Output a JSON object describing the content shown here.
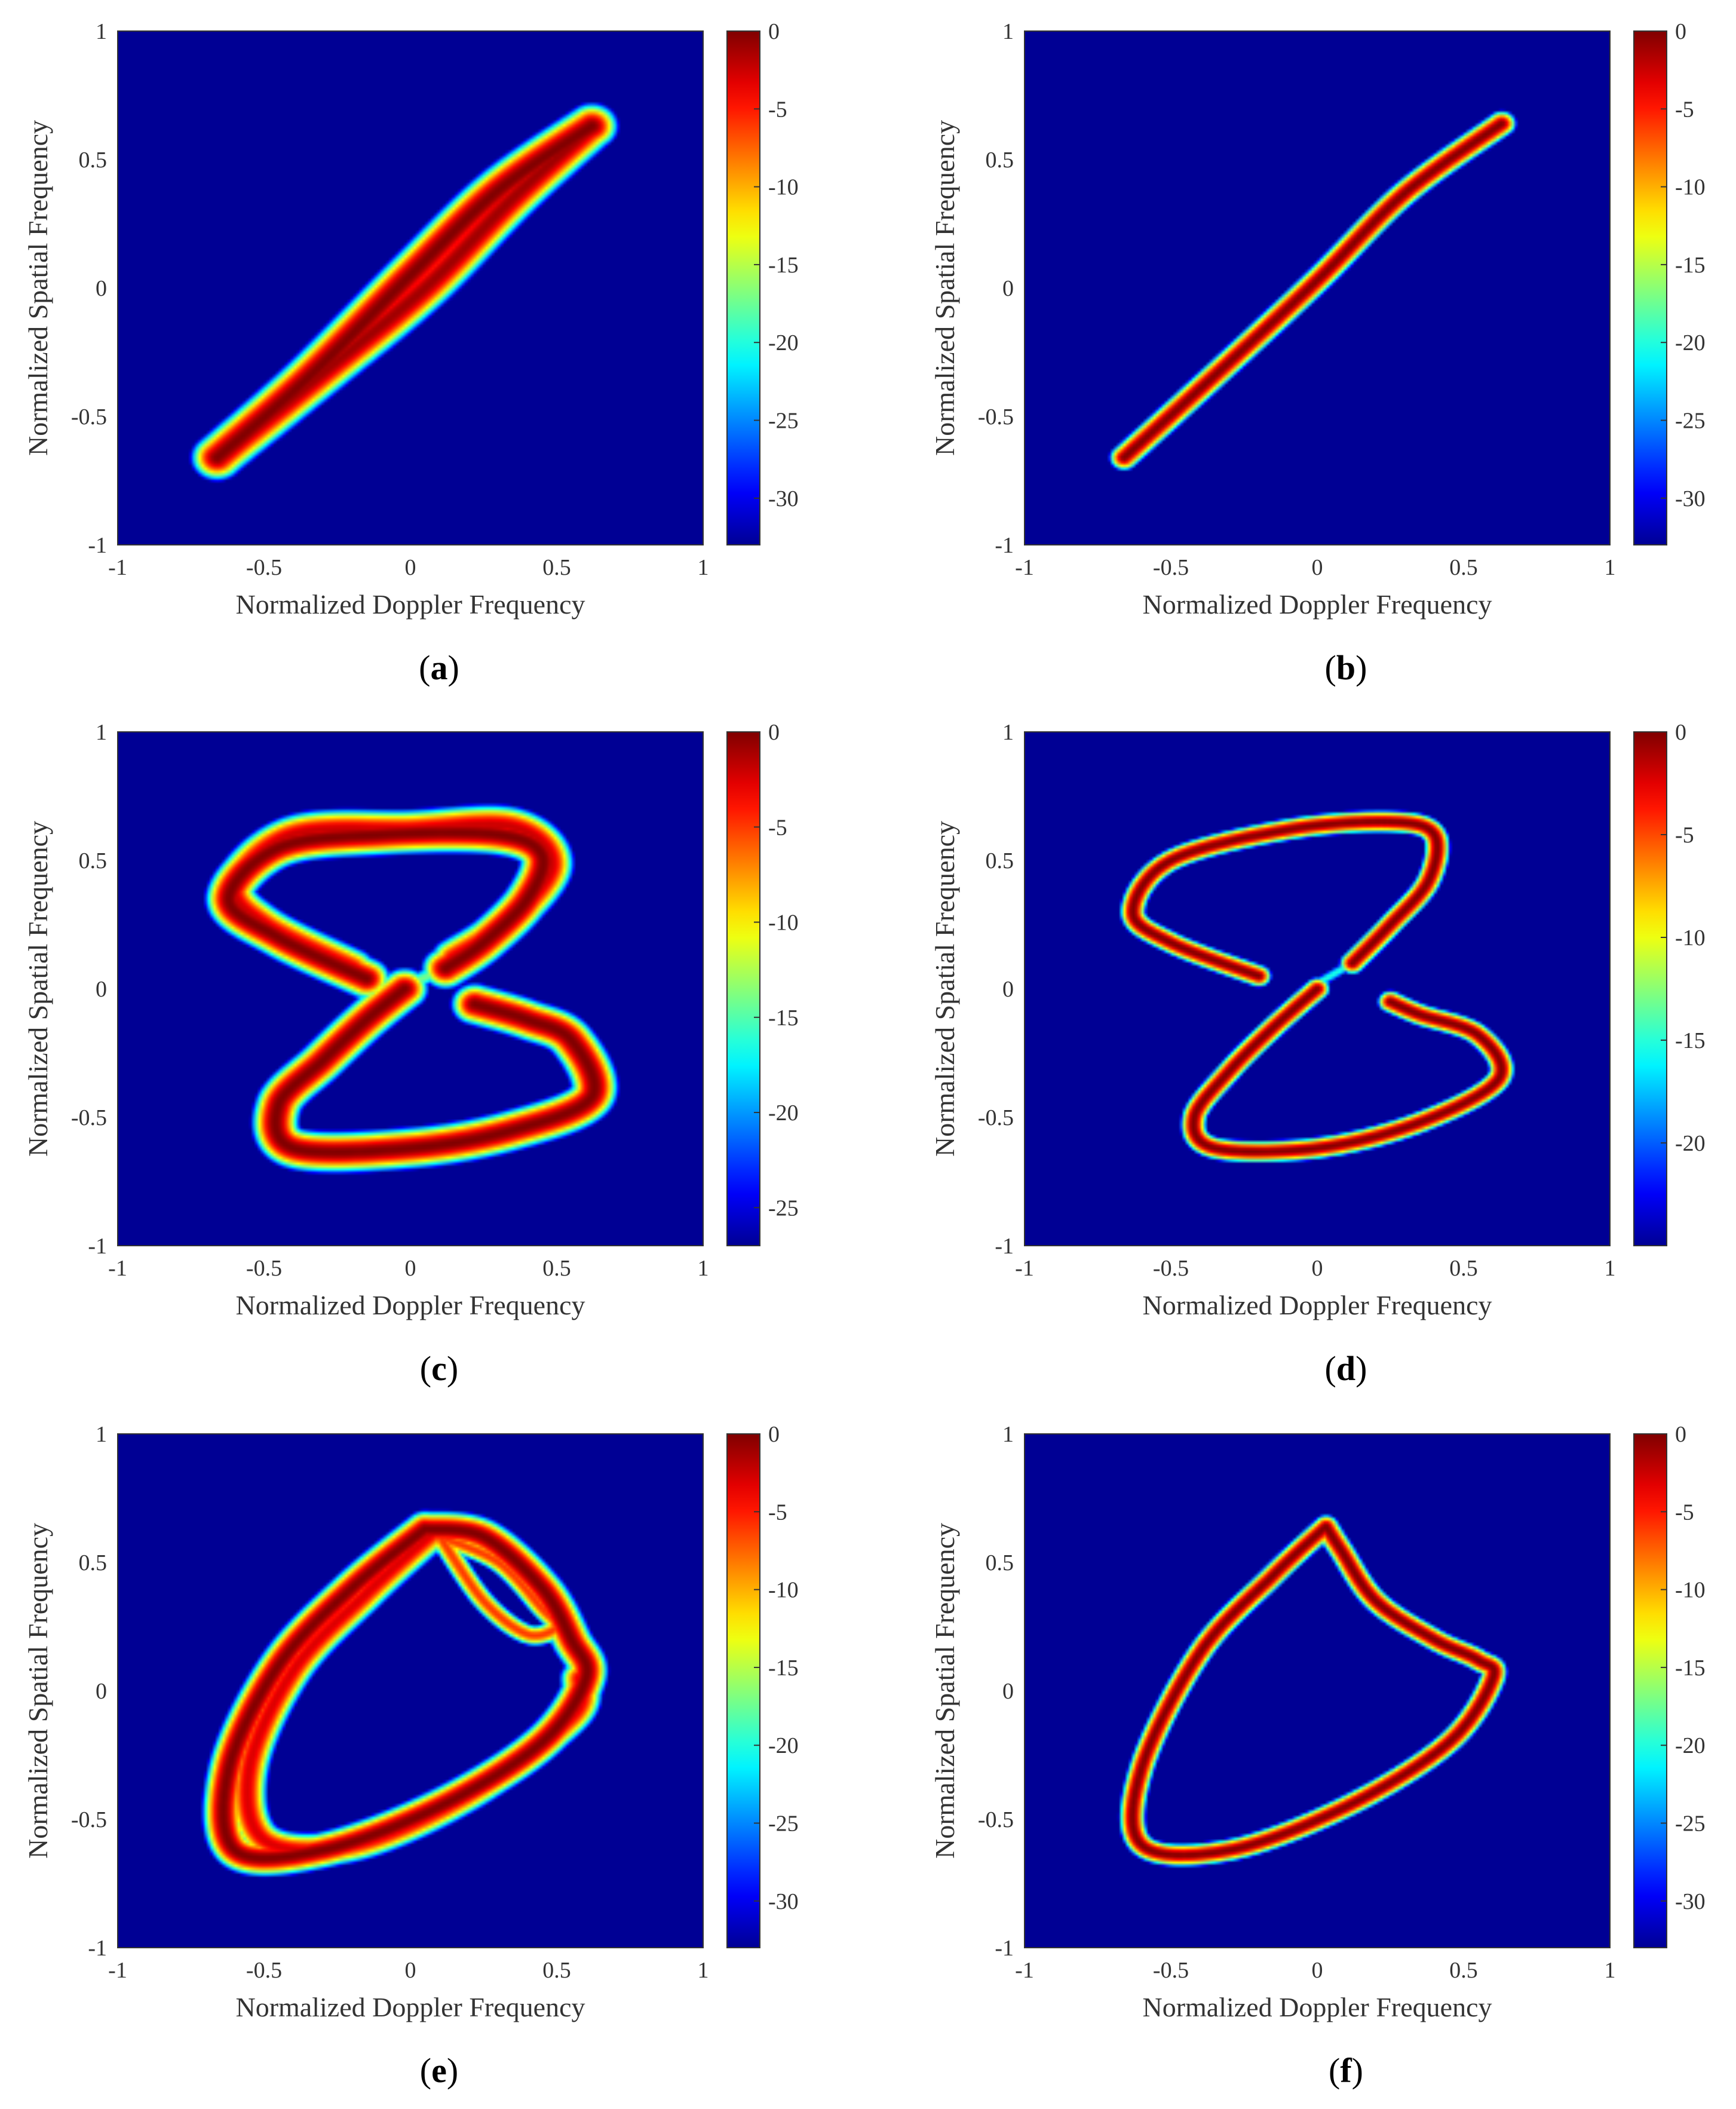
{
  "chart_data": [
    {
      "type": "heatmap",
      "panel": "a",
      "caption_letter": "a",
      "xlabel": "Normalized Doppler Frequency",
      "ylabel": "Normalized Spatial Frequency",
      "xlim": [
        -1,
        1
      ],
      "ylim": [
        -1,
        1
      ],
      "x_ticks": [
        "-1",
        "-0.5",
        "0",
        "0.5",
        "1"
      ],
      "y_ticks": [
        "-1",
        "-0.5",
        "0",
        "0.5",
        "1"
      ],
      "colorbar_ticks": [
        "0",
        "-5",
        "-10",
        "-15",
        "-20",
        "-25",
        "-30"
      ],
      "colorbar_range": [
        -33,
        0
      ],
      "colormap": "jet",
      "ridges": [
        {
          "points": [
            [
              -0.66,
              -0.66
            ],
            [
              -0.35,
              -0.35
            ],
            [
              0,
              0.05
            ],
            [
              0.3,
              0.38
            ],
            [
              0.62,
              0.63
            ]
          ],
          "peak_db": 0,
          "spread": 0.05
        },
        {
          "points": [
            [
              -0.66,
              -0.66
            ],
            [
              -0.3,
              -0.33
            ],
            [
              0.05,
              0
            ],
            [
              0.35,
              0.35
            ],
            [
              0.62,
              0.63
            ]
          ],
          "peak_db": -1,
          "spread": 0.05
        }
      ]
    },
    {
      "type": "heatmap",
      "panel": "b",
      "caption_letter": "b",
      "xlabel": "Normalized Doppler Frequency",
      "ylabel": "Normalized Spatial Frequency",
      "xlim": [
        -1,
        1
      ],
      "ylim": [
        -1,
        1
      ],
      "x_ticks": [
        "-1",
        "-0.5",
        "0",
        "0.5",
        "1"
      ],
      "y_ticks": [
        "-1",
        "-0.5",
        "0",
        "0.5",
        "1"
      ],
      "colorbar_ticks": [
        "0",
        "-5",
        "-10",
        "-15",
        "-20",
        "-25",
        "-30"
      ],
      "colorbar_range": [
        -33,
        0
      ],
      "colormap": "jet",
      "ridges": [
        {
          "points": [
            [
              -0.66,
              -0.66
            ],
            [
              -0.35,
              -0.34
            ],
            [
              0,
              0.03
            ],
            [
              0.3,
              0.37
            ],
            [
              0.63,
              0.64
            ]
          ],
          "peak_db": 0,
          "spread": 0.028
        }
      ]
    },
    {
      "type": "heatmap",
      "panel": "c",
      "caption_letter": "c",
      "xlabel": "Normalized Doppler Frequency",
      "ylabel": "Normalized Spatial Frequency",
      "xlim": [
        -1,
        1
      ],
      "ylim": [
        -1,
        1
      ],
      "x_ticks": [
        "-1",
        "-0.5",
        "0",
        "0.5",
        "1"
      ],
      "y_ticks": [
        "-1",
        "-0.5",
        "0",
        "0.5",
        "1"
      ],
      "colorbar_ticks": [
        "0",
        "-5",
        "-10",
        "-15",
        "-20",
        "-25"
      ],
      "colorbar_range": [
        -27,
        0
      ],
      "colormap": "jet",
      "ridges": [
        {
          "points": [
            [
              -0.15,
              0.04
            ],
            [
              -0.45,
              0.2
            ],
            [
              -0.62,
              0.35
            ],
            [
              -0.45,
              0.55
            ],
            [
              -0.1,
              0.6
            ],
            [
              0.3,
              0.6
            ],
            [
              0.45,
              0.52
            ],
            [
              0.4,
              0.35
            ],
            [
              0.25,
              0.18
            ],
            [
              0.12,
              0.08
            ]
          ],
          "peak_db": 0,
          "spread": 0.05
        },
        {
          "points": [
            [
              -0.2,
              0.08
            ],
            [
              -0.5,
              0.25
            ],
            [
              -0.6,
              0.4
            ],
            [
              -0.4,
              0.6
            ],
            [
              0,
              0.62
            ],
            [
              0.35,
              0.63
            ],
            [
              0.48,
              0.48
            ],
            [
              0.32,
              0.25
            ],
            [
              0.15,
              0.12
            ]
          ],
          "peak_db": -2,
          "spread": 0.05
        },
        {
          "points": [
            [
              -0.02,
              0
            ],
            [
              -0.15,
              -0.12
            ],
            [
              -0.3,
              -0.28
            ],
            [
              -0.45,
              -0.45
            ],
            [
              -0.4,
              -0.62
            ],
            [
              0,
              -0.62
            ],
            [
              0.35,
              -0.55
            ],
            [
              0.62,
              -0.42
            ],
            [
              0.55,
              -0.2
            ],
            [
              0.4,
              -0.12
            ],
            [
              0.22,
              -0.06
            ]
          ],
          "peak_db": 0,
          "spread": 0.05
        },
        {
          "points": [
            [
              0,
              0.02
            ],
            [
              0.12,
              0.08
            ]
          ],
          "peak_db": -14,
          "spread": 0.03
        }
      ]
    },
    {
      "type": "heatmap",
      "panel": "d",
      "caption_letter": "d",
      "xlabel": "Normalized Doppler Frequency",
      "ylabel": "Normalized Spatial Frequency",
      "xlim": [
        -1,
        1
      ],
      "ylim": [
        -1,
        1
      ],
      "x_ticks": [
        "-1",
        "-0.5",
        "0",
        "0.5",
        "1"
      ],
      "y_ticks": [
        "-1",
        "-0.5",
        "0",
        "0.5",
        "1"
      ],
      "colorbar_ticks": [
        "0",
        "-5",
        "-10",
        "-15",
        "-20"
      ],
      "colorbar_range": [
        -25,
        0
      ],
      "colormap": "jet",
      "ridges": [
        {
          "points": [
            [
              -0.2,
              0.05
            ],
            [
              -0.5,
              0.18
            ],
            [
              -0.63,
              0.3
            ],
            [
              -0.5,
              0.5
            ],
            [
              -0.1,
              0.62
            ],
            [
              0.25,
              0.65
            ],
            [
              0.4,
              0.6
            ],
            [
              0.38,
              0.42
            ],
            [
              0.25,
              0.25
            ],
            [
              0.12,
              0.1
            ]
          ],
          "peak_db": 0,
          "spread": 0.028
        },
        {
          "points": [
            [
              0,
              0
            ],
            [
              -0.15,
              -0.15
            ],
            [
              -0.3,
              -0.32
            ],
            [
              -0.42,
              -0.5
            ],
            [
              -0.35,
              -0.62
            ],
            [
              0,
              -0.62
            ],
            [
              0.35,
              -0.52
            ],
            [
              0.62,
              -0.35
            ],
            [
              0.55,
              -0.18
            ],
            [
              0.35,
              -0.1
            ],
            [
              0.25,
              -0.05
            ]
          ],
          "peak_db": 0,
          "spread": 0.028
        },
        {
          "points": [
            [
              0,
              0.02
            ],
            [
              0.12,
              0.1
            ]
          ],
          "peak_db": -15,
          "spread": 0.02
        }
      ]
    },
    {
      "type": "heatmap",
      "panel": "e",
      "caption_letter": "e",
      "xlabel": "Normalized Doppler Frequency",
      "ylabel": "Normalized Spatial Frequency",
      "xlim": [
        -1,
        1
      ],
      "ylim": [
        -1,
        1
      ],
      "x_ticks": [
        "-1",
        "-0.5",
        "0",
        "0.5",
        "1"
      ],
      "y_ticks": [
        "-1",
        "-0.5",
        "0",
        "0.5",
        "1"
      ],
      "colorbar_ticks": [
        "0",
        "-5",
        "-10",
        "-15",
        "-20",
        "-25",
        "-30"
      ],
      "colorbar_range": [
        -33,
        0
      ],
      "colormap": "jet",
      "ridges": [
        {
          "points": [
            [
              0.05,
              0.63
            ],
            [
              -0.2,
              0.4
            ],
            [
              -0.45,
              0.1
            ],
            [
              -0.62,
              -0.3
            ],
            [
              -0.6,
              -0.62
            ],
            [
              -0.3,
              -0.62
            ],
            [
              0.1,
              -0.45
            ],
            [
              0.45,
              -0.2
            ],
            [
              0.6,
              0.05
            ],
            [
              0.55,
              0.2
            ],
            [
              0.45,
              0.4
            ],
            [
              0.25,
              0.6
            ],
            [
              0.05,
              0.63
            ]
          ],
          "peak_db": 0,
          "spread": 0.04
        },
        {
          "points": [
            [
              0.08,
              0.62
            ],
            [
              -0.15,
              0.38
            ],
            [
              -0.4,
              0.08
            ],
            [
              -0.55,
              -0.3
            ],
            [
              -0.5,
              -0.58
            ],
            [
              -0.2,
              -0.6
            ],
            [
              0.2,
              -0.4
            ],
            [
              0.55,
              -0.1
            ],
            [
              0.58,
              0.05
            ]
          ],
          "peak_db": -3,
          "spread": 0.04
        },
        {
          "points": [
            [
              0.1,
              0.6
            ],
            [
              0.3,
              0.5
            ],
            [
              0.45,
              0.32
            ],
            [
              0.5,
              0.25
            ],
            [
              0.4,
              0.22
            ],
            [
              0.25,
              0.35
            ],
            [
              0.1,
              0.6
            ]
          ],
          "peak_db": -6,
          "spread": 0.025
        }
      ]
    },
    {
      "type": "heatmap",
      "panel": "f",
      "caption_letter": "f",
      "xlabel": "Normalized Doppler Frequency",
      "ylabel": "Normalized Spatial Frequency",
      "xlim": [
        -1,
        1
      ],
      "ylim": [
        -1,
        1
      ],
      "x_ticks": [
        "-1",
        "-0.5",
        "0",
        "0.5",
        "1"
      ],
      "y_ticks": [
        "-1",
        "-0.5",
        "0",
        "0.5",
        "1"
      ],
      "colorbar_ticks": [
        "0",
        "-5",
        "-10",
        "-15",
        "-20",
        "-25",
        "-30"
      ],
      "colorbar_range": [
        -33,
        0
      ],
      "colormap": "jet",
      "ridges": [
        {
          "points": [
            [
              0.03,
              0.64
            ],
            [
              -0.15,
              0.45
            ],
            [
              -0.4,
              0.15
            ],
            [
              -0.6,
              -0.3
            ],
            [
              -0.6,
              -0.6
            ],
            [
              -0.3,
              -0.62
            ],
            [
              0.1,
              -0.45
            ],
            [
              0.45,
              -0.2
            ],
            [
              0.6,
              0.05
            ],
            [
              0.55,
              0.12
            ],
            [
              0.4,
              0.2
            ],
            [
              0.2,
              0.35
            ],
            [
              0.08,
              0.55
            ],
            [
              0.03,
              0.64
            ]
          ],
          "peak_db": 0,
          "spread": 0.025
        }
      ]
    }
  ]
}
